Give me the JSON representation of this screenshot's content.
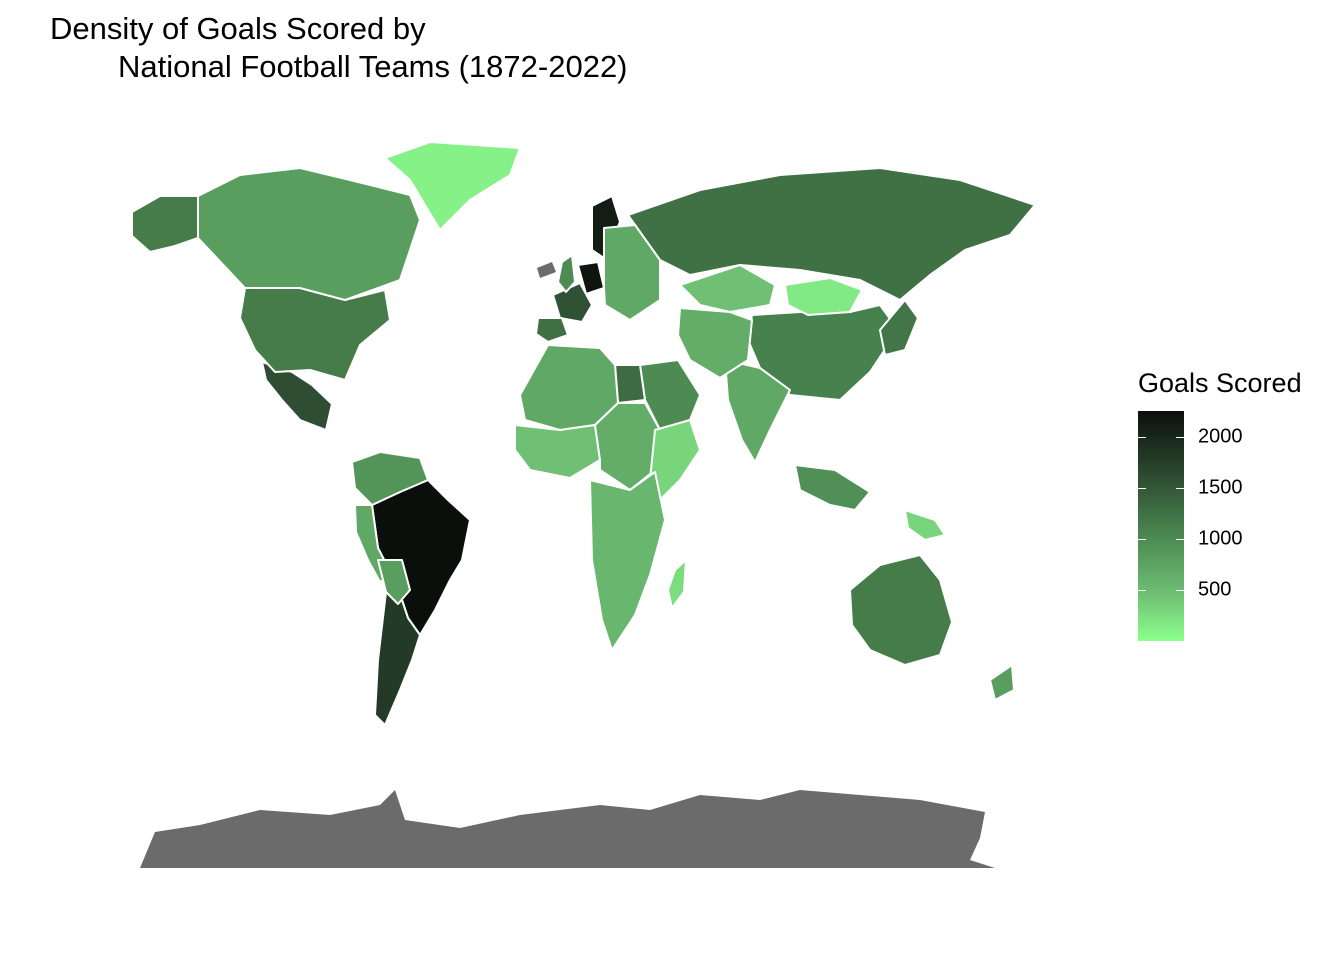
{
  "title": {
    "line1": "Density of Goals Scored by",
    "line2": "National Football Teams (1872-2022)"
  },
  "legend": {
    "title": "Goals Scored",
    "range": [
      0,
      2250
    ],
    "ticks": [
      {
        "value": 2000,
        "label": "2000"
      },
      {
        "value": 1500,
        "label": "1500"
      },
      {
        "value": 1000,
        "label": "1000"
      },
      {
        "value": 500,
        "label": "500"
      }
    ],
    "low_color": "#8cff8c",
    "high_color": "#0b0f0b",
    "no_data_color": "#6b6b6b",
    "border_color": "#ffffff"
  },
  "chart_data": {
    "type": "choropleth",
    "title": "Density of Goals Scored by National Football Teams (1872-2022)",
    "value_label": "Goals Scored",
    "scale": {
      "min": 0,
      "max": 2250,
      "ticks": [
        500,
        1000,
        1500,
        2000
      ]
    },
    "regions": [
      {
        "id": "brazil",
        "value": 2250
      },
      {
        "id": "germany",
        "value": 2200
      },
      {
        "id": "sweden",
        "value": 2100
      },
      {
        "id": "argentina",
        "value": 1800
      },
      {
        "id": "mexico",
        "value": 1600
      },
      {
        "id": "france",
        "value": 1550
      },
      {
        "id": "russia",
        "value": 1250
      },
      {
        "id": "spain",
        "value": 1250
      },
      {
        "id": "usa",
        "value": 1150
      },
      {
        "id": "australia",
        "value": 1150
      },
      {
        "id": "china",
        "value": 1100
      },
      {
        "id": "saudi_arabia",
        "value": 1000
      },
      {
        "id": "egypt",
        "value": 1300
      },
      {
        "id": "canada",
        "value": 800
      },
      {
        "id": "alaska",
        "value": 1150
      },
      {
        "id": "india",
        "value": 700
      },
      {
        "id": "kazakhstan",
        "value": 450
      },
      {
        "id": "mongolia",
        "value": 150
      },
      {
        "id": "greenland",
        "value": 100
      },
      {
        "id": "north_africa",
        "value": 700
      },
      {
        "id": "west_africa",
        "value": 450
      },
      {
        "id": "central_africa",
        "value": 650
      },
      {
        "id": "east_africa",
        "value": 300
      },
      {
        "id": "southern_africa",
        "value": 550
      },
      {
        "id": "madagascar",
        "value": 250
      },
      {
        "id": "colombia_venezuela",
        "value": 900
      },
      {
        "id": "peru",
        "value": 700
      },
      {
        "id": "bolivia",
        "value": 800
      },
      {
        "id": "indonesia",
        "value": 950
      },
      {
        "id": "papua",
        "value": 300
      },
      {
        "id": "japan",
        "value": 1200
      },
      {
        "id": "new_zealand",
        "value": 800
      },
      {
        "id": "eastern_europe",
        "value": 700
      },
      {
        "id": "uk",
        "value": 1000
      },
      {
        "id": "central_asia",
        "value": 650
      }
    ],
    "no_data_regions": [
      "antarctica",
      "iceland"
    ]
  }
}
